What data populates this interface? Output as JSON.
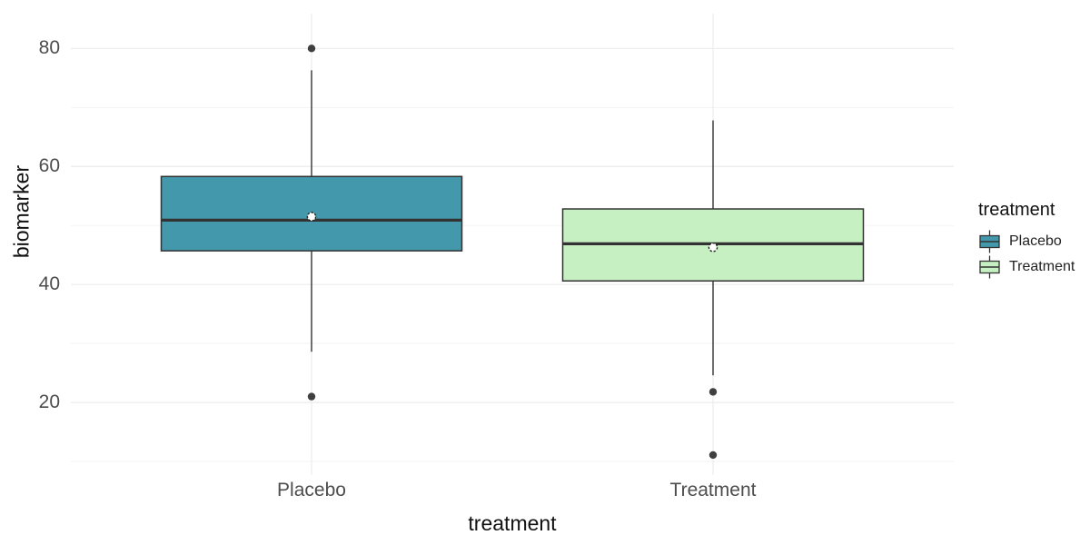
{
  "figure": {
    "background": "#FFFFFF"
  },
  "chart_data": {
    "type": "boxplot",
    "title": "",
    "xlabel": "treatment",
    "ylabel": "biomarker",
    "categories": [
      "Placebo",
      "Treatment"
    ],
    "series": [
      {
        "name": "Placebo",
        "fill": "#4498AB",
        "q1": 45.7,
        "median": 50.9,
        "q3": 58.3,
        "whisker_low": 28.6,
        "whisker_high": 76.3,
        "mean": 51.5,
        "outliers": [
          80,
          21
        ]
      },
      {
        "name": "Treatment",
        "fill": "#C7F0C2",
        "q1": 40.6,
        "median": 46.9,
        "q3": 52.8,
        "whisker_low": 24.6,
        "whisker_high": 67.8,
        "mean": 46.3,
        "outliers": [
          21.8,
          11.1
        ]
      }
    ],
    "ylim": [
      7.7,
      85.9
    ],
    "yticks": [
      20,
      40,
      60,
      80
    ],
    "yticks_minor": [
      10,
      30,
      50,
      70
    ],
    "grid": true,
    "legend_position": "right",
    "legend_title": "treatment",
    "style": {
      "box_border": "#333333",
      "median_color": "#333333",
      "whisker_color": "#333333",
      "outlier_color": "#3F3F3F",
      "mean_fill": "#FFFFFF",
      "mean_stroke": "#222222",
      "grid_major": "#EBEBEB",
      "grid_minor": "#F2F2F2",
      "axis_text_color": "#4D4D4D",
      "axis_title_color": "#111111"
    }
  }
}
